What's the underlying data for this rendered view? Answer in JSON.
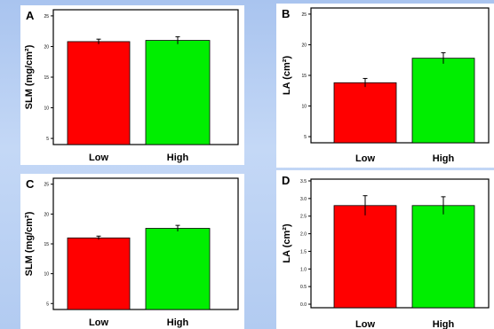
{
  "chart_data": [
    {
      "type": "bar",
      "panel_label": "A",
      "categories": [
        "Low",
        "High"
      ],
      "values": [
        20.8,
        21.0
      ],
      "errors": [
        0.4,
        0.6
      ],
      "colors": [
        "#ff0000",
        "#00ee00"
      ],
      "ylabel": "SLM (mg/cm²)",
      "ylim": [
        4,
        26
      ],
      "yticks": [
        5,
        10,
        15,
        20,
        25
      ]
    },
    {
      "type": "bar",
      "panel_label": "B",
      "categories": [
        "Low",
        "High"
      ],
      "values": [
        13.8,
        17.8
      ],
      "errors": [
        0.7,
        0.9
      ],
      "colors": [
        "#ff0000",
        "#00ee00"
      ],
      "ylabel": "LA (cm²)",
      "ylim": [
        4,
        26
      ],
      "yticks": [
        5,
        10,
        15,
        20,
        25
      ]
    },
    {
      "type": "bar",
      "panel_label": "C",
      "categories": [
        "Low",
        "High"
      ],
      "values": [
        16.0,
        17.6
      ],
      "errors": [
        0.3,
        0.5
      ],
      "colors": [
        "#ff0000",
        "#00ee00"
      ],
      "ylabel": "SLM (mg/cm²)",
      "ylim": [
        4,
        26
      ],
      "yticks": [
        5,
        10,
        15,
        20,
        25
      ]
    },
    {
      "type": "bar",
      "panel_label": "D",
      "categories": [
        "Low",
        "High"
      ],
      "values": [
        2.8,
        2.8
      ],
      "errors": [
        0.28,
        0.25
      ],
      "colors": [
        "#ff0000",
        "#00ee00"
      ],
      "ylabel": "LA (cm²)",
      "ylim": [
        -0.1,
        3.55
      ],
      "yticks": [
        0.0,
        0.5,
        1.0,
        1.5,
        2.0,
        2.5,
        3.0,
        3.5
      ],
      "tick_decimals": 1
    }
  ]
}
